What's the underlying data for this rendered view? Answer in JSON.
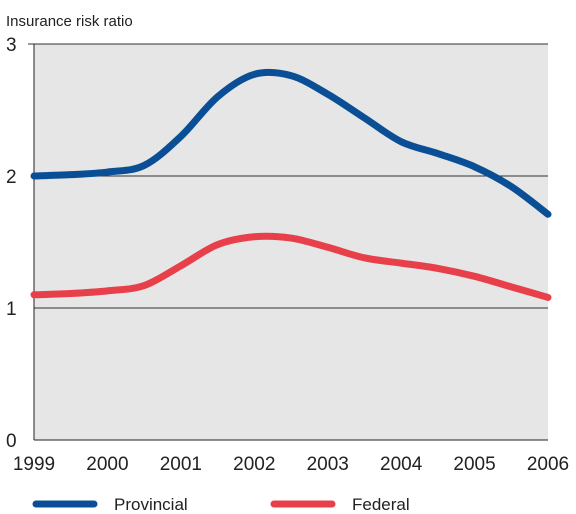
{
  "chart_data": {
    "type": "line",
    "title": "",
    "ylabel": "Insurance risk ratio",
    "xlabel": "",
    "x": [
      1999,
      1999.5,
      2000,
      2000.5,
      2001,
      2001.5,
      2002,
      2002.5,
      2003,
      2003.5,
      2004,
      2004.5,
      2005,
      2005.5,
      2006
    ],
    "xticks": [
      "1999",
      "2000",
      "2001",
      "2002",
      "2003",
      "2004",
      "2005",
      "2006"
    ],
    "yticks": [
      "0",
      "1",
      "2",
      "3"
    ],
    "ylim": [
      0,
      3
    ],
    "xlim": [
      1999,
      2006
    ],
    "grid": "horizontal",
    "legend_position": "bottom",
    "series": [
      {
        "name": "Provincial",
        "color": "#0a4f96",
        "values": [
          2.0,
          2.01,
          2.03,
          2.08,
          2.3,
          2.6,
          2.77,
          2.76,
          2.62,
          2.44,
          2.26,
          2.17,
          2.07,
          1.92,
          1.71
        ]
      },
      {
        "name": "Federal",
        "color": "#e8404a",
        "values": [
          1.1,
          1.11,
          1.13,
          1.17,
          1.32,
          1.48,
          1.54,
          1.53,
          1.46,
          1.38,
          1.34,
          1.3,
          1.24,
          1.16,
          1.08
        ]
      }
    ]
  }
}
